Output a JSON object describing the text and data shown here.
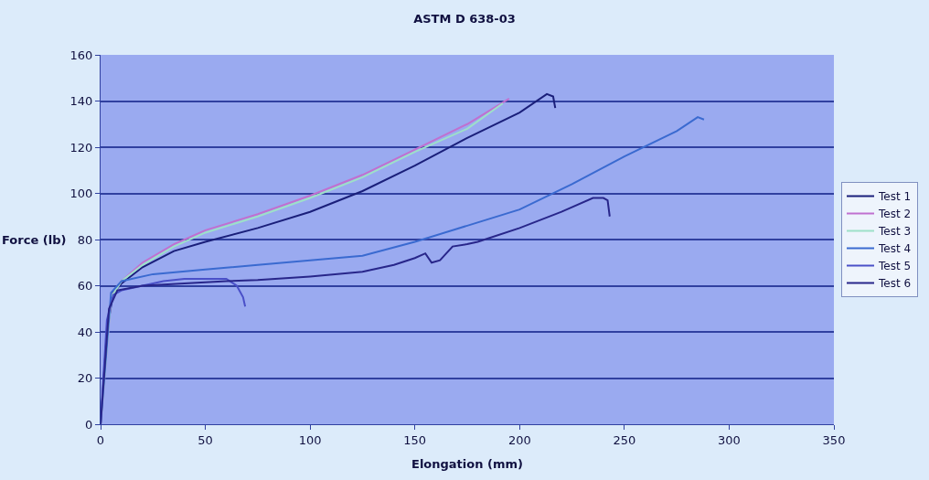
{
  "chart_data": {
    "type": "line",
    "title": "ASTM D 638-03",
    "xlabel": "Elongation (mm)",
    "ylabel": "Force (lb)",
    "xlim": [
      0,
      350
    ],
    "xticks": [
      0,
      50,
      100,
      150,
      200,
      250,
      300,
      350
    ],
    "ylim": [
      0,
      160
    ],
    "yticks": [
      0,
      20,
      40,
      60,
      80,
      100,
      120,
      140,
      160
    ],
    "grid": "y",
    "legend": "right",
    "marker": "none",
    "line_style": "solid",
    "series": [
      {
        "name": "Test 1",
        "color": "#1a1f7a",
        "x": [
          0,
          3,
          6,
          10,
          20,
          35,
          50,
          75,
          100,
          125,
          150,
          175,
          200,
          213,
          216,
          217
        ],
        "values": [
          0,
          40,
          57,
          61,
          68,
          75,
          79,
          85,
          92,
          101,
          112,
          124,
          135,
          143,
          142,
          137
        ]
      },
      {
        "name": "Test 2",
        "color": "#c070d0",
        "x": [
          0,
          5,
          10,
          20,
          35,
          50,
          75,
          100,
          125,
          150,
          175,
          195
        ],
        "values": [
          0,
          55,
          62,
          70,
          78,
          84,
          91,
          99,
          108,
          119,
          130,
          141
        ]
      },
      {
        "name": "Test 3",
        "color": "#9ee0c8",
        "x": [
          0,
          5,
          10,
          20,
          35,
          50,
          75,
          100,
          125,
          150,
          175,
          192
        ],
        "values": [
          0,
          55,
          62,
          69,
          77,
          83,
          90,
          98,
          107,
          118,
          128,
          139
        ]
      },
      {
        "name": "Test 4",
        "color": "#3a6ad0",
        "x": [
          0,
          5,
          10,
          25,
          50,
          75,
          100,
          125,
          150,
          175,
          200,
          225,
          250,
          275,
          285,
          288
        ],
        "values": [
          0,
          57,
          62,
          65,
          67,
          69,
          71,
          73,
          79,
          86,
          93,
          104,
          116,
          127,
          133,
          132
        ]
      },
      {
        "name": "Test 5",
        "color": "#4a50c8",
        "x": [
          0,
          3,
          6,
          10,
          20,
          30,
          40,
          50,
          60,
          65,
          68,
          69
        ],
        "values": [
          0,
          45,
          56,
          58,
          60,
          62,
          63,
          63,
          63,
          60,
          55,
          51
        ]
      },
      {
        "name": "Test 6",
        "color": "#28268a",
        "x": [
          0,
          4,
          8,
          20,
          40,
          60,
          75,
          100,
          125,
          140,
          150,
          155,
          158,
          162,
          168,
          175,
          180,
          200,
          220,
          235,
          240,
          242,
          243
        ],
        "values": [
          0,
          50,
          58,
          60,
          61,
          62,
          62.5,
          64,
          66,
          69,
          72,
          74,
          70,
          71,
          77,
          78,
          79,
          85,
          92,
          98,
          98,
          97,
          90
        ]
      }
    ]
  }
}
